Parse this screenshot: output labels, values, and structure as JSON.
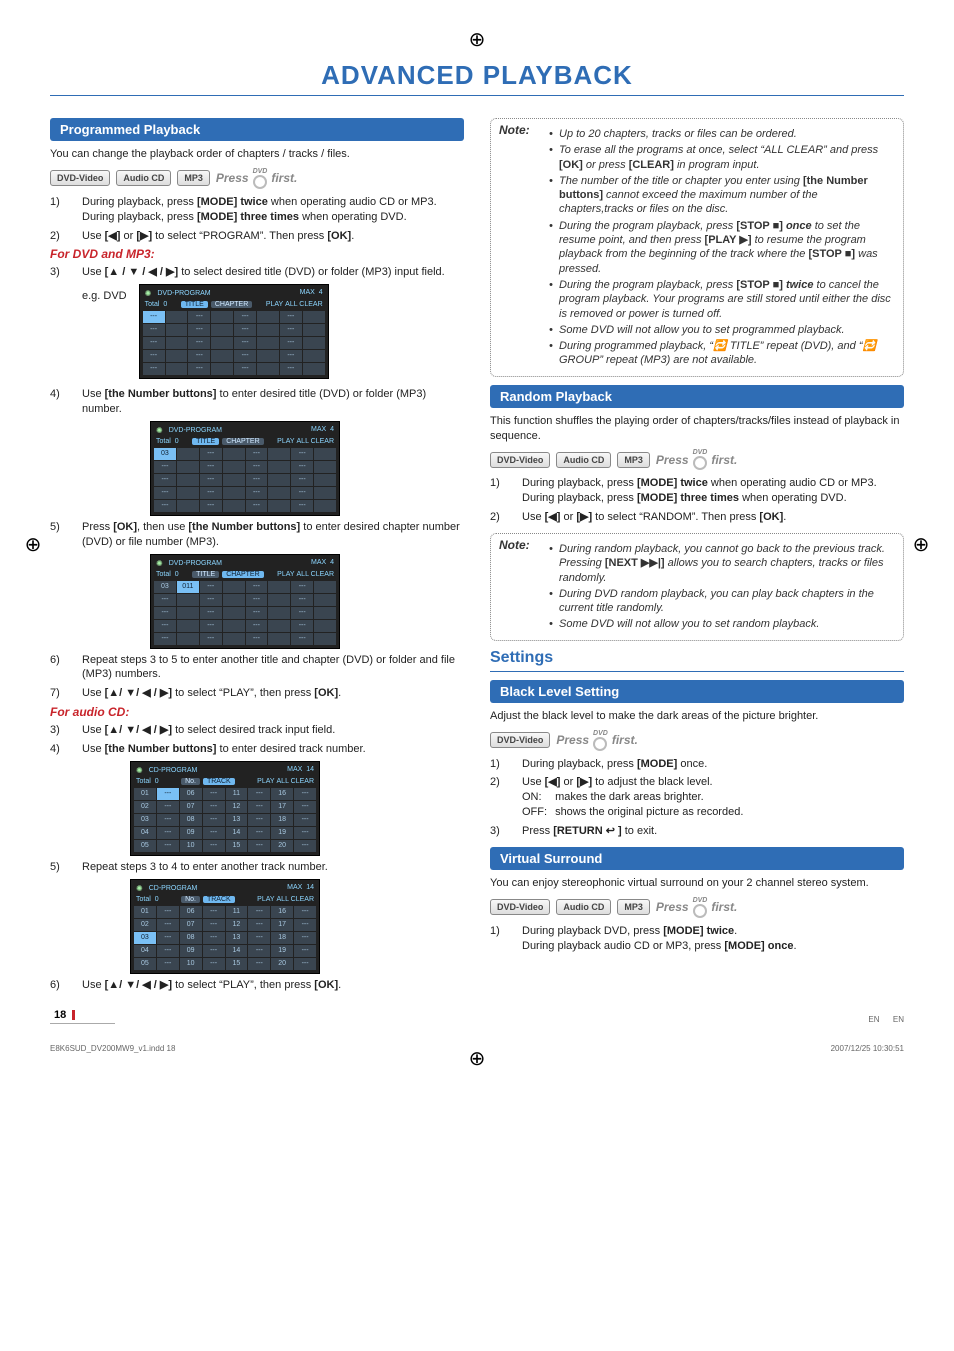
{
  "page": {
    "title": "ADVANCED PLAYBACK",
    "number": "18",
    "footer_left": "E8K6SUD_DV200MW9_v1.indd   18",
    "footer_right": "2007/12/25   10:30:51",
    "en_label": "EN"
  },
  "colors": {
    "accent_blue": "#2f6db5",
    "accent_red": "#c8242b",
    "note_border": "#888888"
  },
  "badges": {
    "dvd_video": "DVD-Video",
    "audio_cd": "Audio CD",
    "mp3": "MP3",
    "press": "Press",
    "first": "first.",
    "dvd_small": "DVD"
  },
  "left": {
    "header1": "Programmed Playback",
    "intro": "You can change the playback order of chapters / tracks / files.",
    "step1": "During playback, press [MODE] twice when operating audio CD or MP3.",
    "step1b": "During playback, press [MODE] three times when operating DVD.",
    "step2": "Use [◀] or [▶] to select “PROGRAM”. Then press [OK].",
    "sub1": "For DVD and MP3:",
    "step3": "Use [▲ / ▼ / ◀ / ▶] to select desired title (DVD) or folder (MP3) input field.",
    "eg_label": "e.g. DVD",
    "step4": "Use [the Number buttons] to enter desired title (DVD) or folder (MP3) number.",
    "step5": "Press [OK], then use [the Number buttons] to enter desired chapter number (DVD) or file number (MP3).",
    "step6": "Repeat steps 3 to 5 to enter another title and chapter (DVD) or folder and file (MP3) numbers.",
    "step7": "Use [▲/ ▼/ ◀ / ▶] to select “PLAY”, then press [OK].",
    "sub2": "For audio CD:",
    "cd_step3": "Use [▲/ ▼/ ◀ / ▶] to select desired track input field.",
    "cd_step4": "Use [the Number buttons] to enter desired track number.",
    "cd_step5": "Repeat steps 3 to 4 to enter another track number.",
    "cd_step6": "Use [▲/ ▼/ ◀ / ▶] to select “PLAY”, then press [OK].",
    "osd_dvd": {
      "title": "DVD-PROGRAM",
      "max_label": "MAX",
      "max_val": "4",
      "total_label": "Total",
      "total_val": "0",
      "col_title": "TITLE",
      "col_chapter": "CHAPTER",
      "play": "PLAY",
      "allclear": "ALL CLEAR"
    },
    "osd_cd": {
      "title": "CD-PROGRAM",
      "max_label": "MAX",
      "max_val": "14",
      "total_label": "Total",
      "total_val": "0",
      "col_no": "No.",
      "col_track": "TRACK",
      "play": "PLAY",
      "allclear": "ALL CLEAR",
      "cells": [
        "01",
        "02",
        "03",
        "04",
        "05",
        "06",
        "07",
        "08",
        "09",
        "10",
        "11",
        "12",
        "13",
        "14",
        "15",
        "16",
        "17",
        "18",
        "19",
        "20"
      ]
    }
  },
  "right": {
    "note1_label": "Note:",
    "note1": [
      "Up to 20 chapters, tracks or files can be ordered.",
      "To erase all the programs at once, select “ALL CLEAR” and press [OK] or press [CLEAR] in program input.",
      "The number of the title or chapter you enter using [the Number buttons] cannot exceed the maximum number of the chapters, tracks or files on the disc.",
      "During the program playback, press [STOP ■] once to set the resume point, and then press [PLAY ▶] to resume the program playback from the beginning of the track where the [STOP ■] was pressed.",
      "During the program playback, press [STOP ■] twice to cancel the program playback. Your programs are still stored until either the disc is removed or power is turned off.",
      "Some DVD will not allow you to set programmed playback.",
      "During programmed playback, “🔁 TITLE” repeat (DVD), and “🔁 GROUP” repeat (MP3) are not available."
    ],
    "header_random": "Random Playback",
    "random_intro": "This function shuffles the playing order of chapters/tracks/files instead of playback in sequence.",
    "random_step1": "During playback, press [MODE] twice when operating audio CD or MP3.",
    "random_step1b": "During playback, press [MODE] three times when operating DVD.",
    "random_step2": "Use [◀] or [▶] to select “RANDOM”. Then press [OK].",
    "note2_label": "Note:",
    "note2": [
      "During random playback, you cannot go back to the previous track. Pressing [NEXT ▶▶|] allows you to search chapters, tracks or files randomly.",
      "During DVD random playback, you can play back chapters in the current title randomly.",
      "Some DVD will not allow you to set random playback."
    ],
    "settings_title": "Settings",
    "header_black": "Black Level Setting",
    "black_intro": "Adjust the black level to make the dark areas of the picture brighter.",
    "black_step1": "During playback, press [MODE] once.",
    "black_step2": "Use [◀] or [▶] to adjust the black level.",
    "black_on_label": "ON:",
    "black_on_val": "makes the dark areas brighter.",
    "black_off_label": "OFF:",
    "black_off_val": "shows the original picture as recorded.",
    "black_step3": "Press [RETURN ↩ ] to exit.",
    "header_vs": "Virtual Surround",
    "vs_intro": "You can enjoy stereophonic virtual surround on your 2 channel stereo system.",
    "vs_step1a": "During playback DVD, press [MODE] twice.",
    "vs_step1b": "During playback audio CD or MP3, press [MODE] once."
  }
}
